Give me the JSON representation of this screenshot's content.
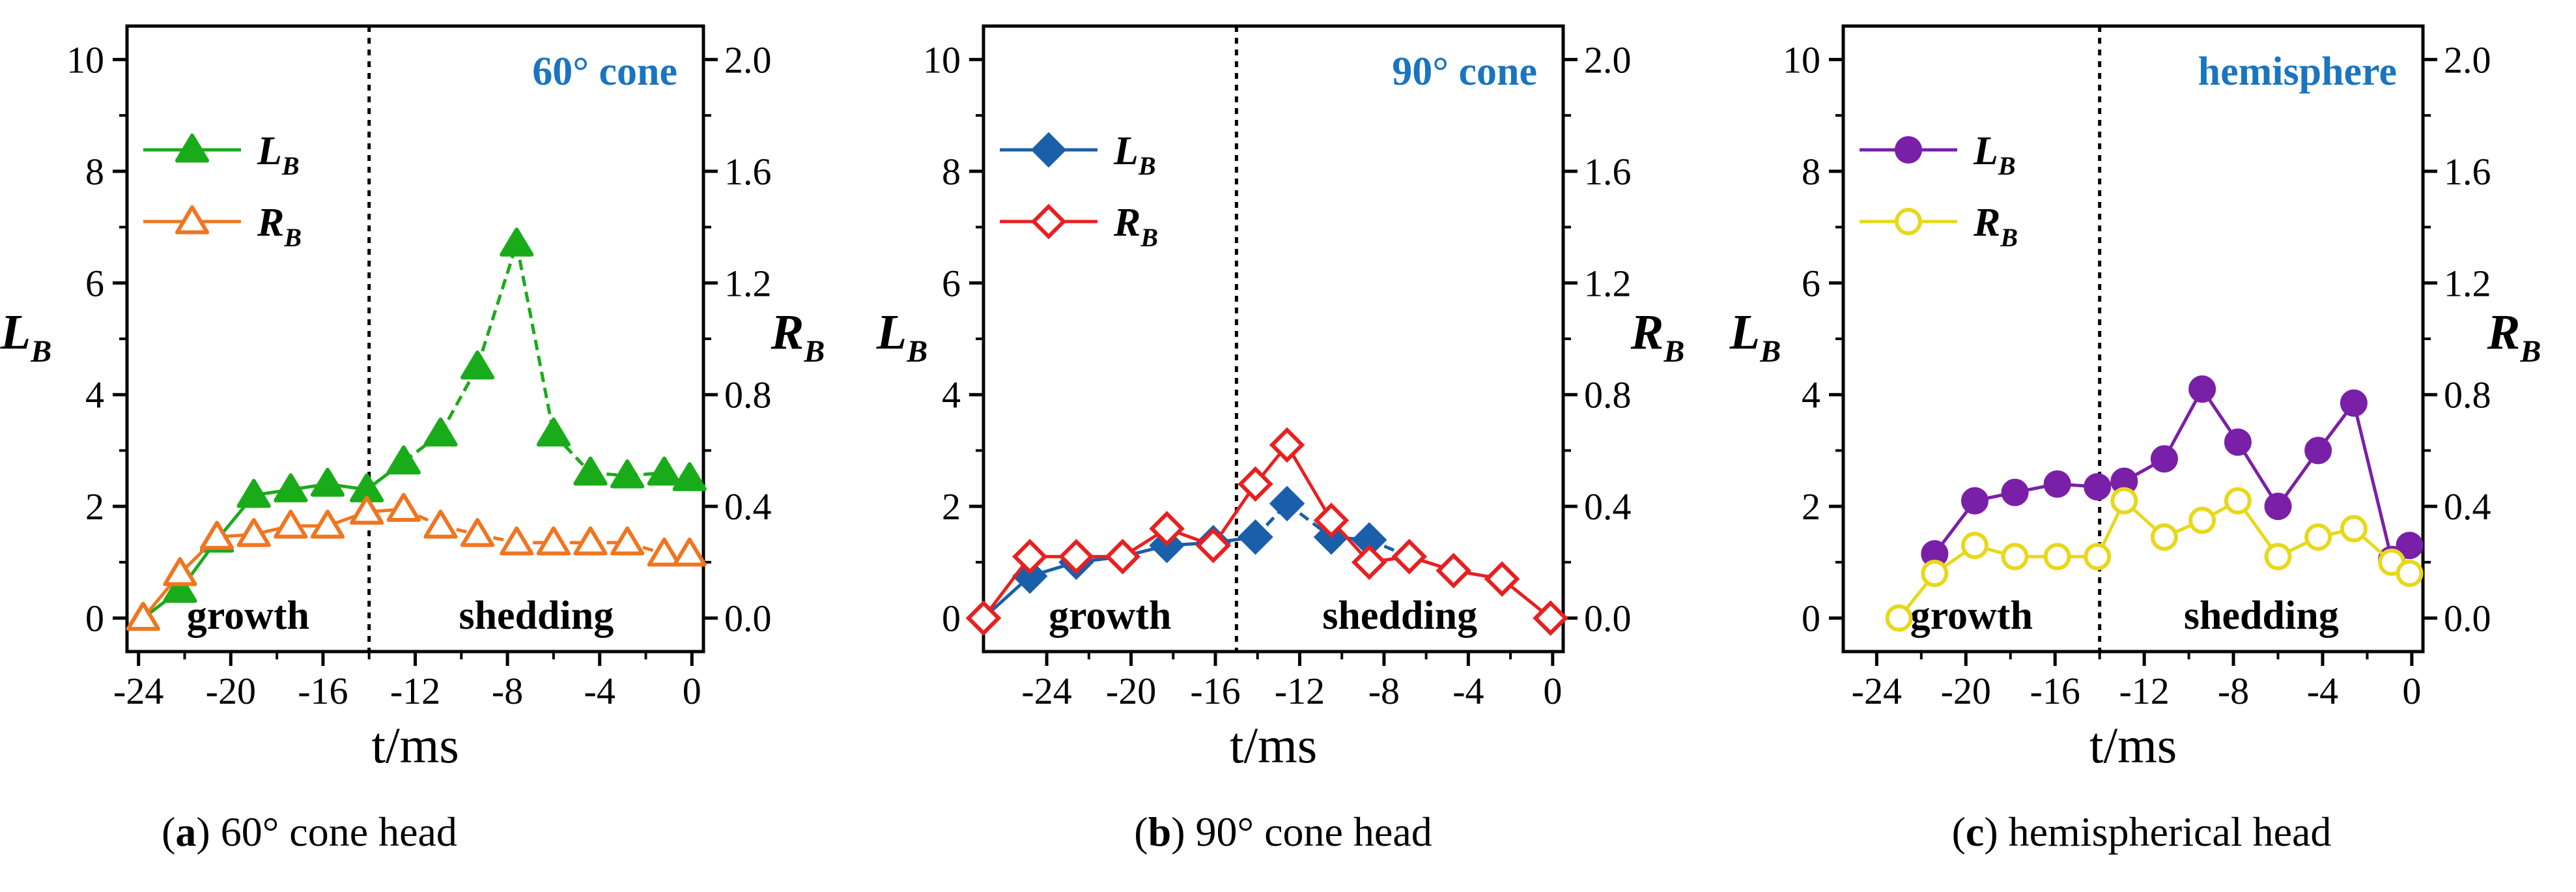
{
  "chart_data": [
    {
      "type": "line",
      "title": "60° cone",
      "title_color": "#1a75c0",
      "caption": {
        "letter": "a",
        "text": "60° cone head"
      },
      "xlabel": "t/ms",
      "ylabel_left": {
        "main": "L",
        "sub": "B"
      },
      "ylabel_right": {
        "main": "R",
        "sub": "B"
      },
      "xlim": [
        -24.5,
        0.5
      ],
      "xticks": [
        "-24",
        "-20",
        "-16",
        "-12",
        "-8",
        "-4",
        "0"
      ],
      "xtick_values": [
        -24,
        -20,
        -16,
        -12,
        -8,
        -4,
        0
      ],
      "ylim_left": [
        -0.6,
        10.6
      ],
      "yticks_left": [
        "0",
        "2",
        "4",
        "6",
        "8",
        "10"
      ],
      "ylim_right": [
        -0.12,
        2.12
      ],
      "yticks_right": [
        "0.0",
        "0.4",
        "0.8",
        "1.2",
        "1.6",
        "2.0"
      ],
      "divider_x": -14,
      "region_labels": {
        "left": "growth",
        "right": "shedding"
      },
      "series": [
        {
          "name_main": "L",
          "name_sub": "B",
          "axis": "left",
          "color": "#1aab1a",
          "marker": "triangle",
          "filled": true,
          "x": [
            -23.8,
            -22.2,
            -20.6,
            -19.0,
            -17.4,
            -15.8,
            -14.1,
            -12.5,
            -10.9,
            -9.3,
            -7.6,
            -6.0,
            -4.4,
            -2.8,
            -1.2,
            -0.1
          ],
          "values": [
            0.0,
            0.5,
            1.4,
            2.2,
            2.3,
            2.4,
            2.3,
            2.8,
            3.3,
            4.5,
            6.7,
            3.3,
            2.6,
            2.55,
            2.6,
            2.5
          ],
          "dash_from_index": 0
        },
        {
          "name_main": "R",
          "name_sub": "B",
          "axis": "right",
          "color": "#f07520",
          "marker": "triangle",
          "filled": false,
          "x": [
            -23.8,
            -22.2,
            -20.6,
            -19.0,
            -17.4,
            -15.8,
            -14.1,
            -12.5,
            -10.9,
            -9.3,
            -7.6,
            -6.0,
            -4.4,
            -2.8,
            -1.2,
            -0.1
          ],
          "values": [
            0.0,
            0.16,
            0.29,
            0.3,
            0.33,
            0.33,
            0.38,
            0.39,
            0.33,
            0.3,
            0.27,
            0.27,
            0.27,
            0.27,
            0.23,
            0.23
          ],
          "dash_from_index": 1
        }
      ]
    },
    {
      "type": "line",
      "title": "90° cone",
      "title_color": "#1a75c0",
      "caption": {
        "letter": "b",
        "text": "90° cone head"
      },
      "xlabel": "t/ms",
      "ylabel_left": {
        "main": "L",
        "sub": "B"
      },
      "ylabel_right": {
        "main": "R",
        "sub": "B"
      },
      "xlim": [
        -27,
        0.5
      ],
      "xticks": [
        "-24",
        "-20",
        "-16",
        "-12",
        "-8",
        "-4",
        "0"
      ],
      "xtick_values": [
        -24,
        -20,
        -16,
        -12,
        -8,
        -4,
        0
      ],
      "ylim_left": [
        -0.6,
        10.6
      ],
      "yticks_left": [
        "0",
        "2",
        "4",
        "6",
        "8",
        "10"
      ],
      "ylim_right": [
        -0.12,
        2.12
      ],
      "yticks_right": [
        "0.0",
        "0.4",
        "0.8",
        "1.2",
        "1.6",
        "2.0"
      ],
      "divider_x": -15,
      "region_labels": {
        "left": "growth",
        "right": "shedding"
      },
      "series": [
        {
          "name_main": "L",
          "name_sub": "B",
          "axis": "left",
          "color": "#1a5faa",
          "marker": "diamond",
          "filled": true,
          "x": [
            -27.0,
            -24.8,
            -22.6,
            -20.4,
            -18.3,
            -16.1,
            -14.1,
            -12.6,
            -10.5,
            -8.7,
            -6.8,
            -4.7,
            -2.4,
            -0.1
          ],
          "values": [
            0.0,
            0.75,
            1.0,
            1.1,
            1.3,
            1.35,
            1.45,
            2.05,
            1.45,
            1.4,
            1.1,
            0.85,
            0.7,
            0.0
          ],
          "dash_from_index": 0
        },
        {
          "name_main": "R",
          "name_sub": "B",
          "axis": "right",
          "color": "#e82020",
          "marker": "diamond",
          "filled": false,
          "x": [
            -27.0,
            -24.8,
            -22.6,
            -20.4,
            -18.3,
            -16.1,
            -14.1,
            -12.6,
            -10.5,
            -8.7,
            -6.8,
            -4.7,
            -2.4,
            -0.1
          ],
          "values": [
            0.0,
            0.22,
            0.22,
            0.22,
            0.32,
            0.26,
            0.48,
            0.62,
            0.35,
            0.2,
            0.22,
            0.17,
            0.14,
            0.0
          ],
          "dash_from_index": 99
        }
      ]
    },
    {
      "type": "line",
      "title": "hemisphere",
      "title_color": "#1a75c0",
      "caption": {
        "letter": "c",
        "text": "hemispherical head"
      },
      "xlabel": "t/ms",
      "ylabel_left": {
        "main": "L",
        "sub": "B"
      },
      "ylabel_right": {
        "main": "R",
        "sub": "B"
      },
      "xlim": [
        -25.5,
        0.5
      ],
      "xticks": [
        "-24",
        "-20",
        "-16",
        "-12",
        "-8",
        "-4",
        "0"
      ],
      "xtick_values": [
        -24,
        -20,
        -16,
        -12,
        -8,
        -4,
        0
      ],
      "ylim_left": [
        -0.6,
        10.6
      ],
      "yticks_left": [
        "0",
        "2",
        "4",
        "6",
        "8",
        "10"
      ],
      "ylim_right": [
        -0.12,
        2.12
      ],
      "yticks_right": [
        "0.0",
        "0.4",
        "0.8",
        "1.2",
        "1.6",
        "2.0"
      ],
      "divider_x": -14,
      "region_labels": {
        "left": "growth",
        "right": "shedding"
      },
      "series": [
        {
          "name_main": "L",
          "name_sub": "B",
          "axis": "left",
          "color": "#7a1fa8",
          "marker": "circle",
          "filled": true,
          "x": [
            -21.4,
            -19.6,
            -17.8,
            -15.9,
            -14.1,
            -12.9,
            -11.1,
            -9.4,
            -7.8,
            -6.0,
            -4.2,
            -2.6,
            -0.9,
            -0.1
          ],
          "values": [
            1.15,
            2.1,
            2.25,
            2.4,
            2.35,
            2.45,
            2.85,
            4.1,
            3.15,
            2.0,
            3.0,
            3.85,
            1.05,
            1.3
          ],
          "dash_from_index": 99
        },
        {
          "name_main": "R",
          "name_sub": "B",
          "axis": "right",
          "color": "#e8d81a",
          "marker": "circle",
          "filled": false,
          "x": [
            -23.0,
            -21.4,
            -19.6,
            -17.8,
            -15.9,
            -14.1,
            -12.9,
            -11.1,
            -9.4,
            -7.8,
            -6.0,
            -4.2,
            -2.6,
            -0.9,
            -0.1
          ],
          "values": [
            0.0,
            0.16,
            0.26,
            0.22,
            0.22,
            0.22,
            0.42,
            0.29,
            0.35,
            0.42,
            0.22,
            0.29,
            0.32,
            0.2,
            0.16
          ],
          "dash_from_index": 99
        }
      ]
    }
  ]
}
